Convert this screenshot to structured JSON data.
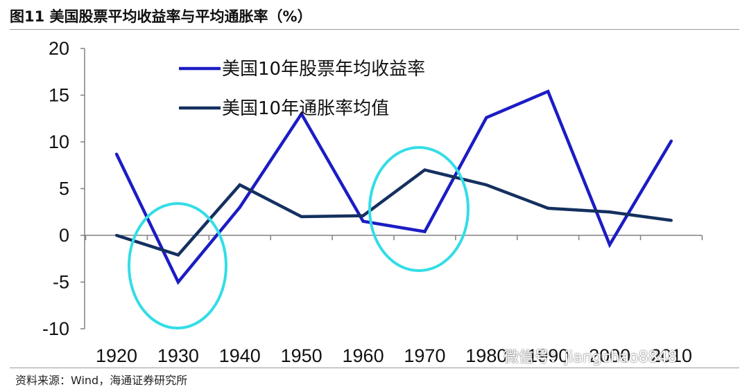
{
  "title": "图11 美国股票平均收益率与平均通胀率（%）",
  "source": "资料来源：Wind，海通证券研究所",
  "watermark": "微信号：jiangchao8848",
  "chart_data": {
    "type": "line",
    "x": [
      1920,
      1930,
      1940,
      1950,
      1960,
      1970,
      1980,
      1990,
      2000,
      2010
    ],
    "ylim": [
      -10,
      20
    ],
    "yticks": [
      -10,
      -5,
      0,
      5,
      10,
      15,
      20
    ],
    "series": [
      {
        "name": "美国10年股票年均收益率",
        "color": "#1c1cc4",
        "values": [
          8.7,
          -5.0,
          3.0,
          13.0,
          1.5,
          0.4,
          12.6,
          15.4,
          -1.0,
          10.1
        ]
      },
      {
        "name": "美国10年通胀率均值",
        "color": "#15305f",
        "values": [
          0.0,
          -2.1,
          5.4,
          2.0,
          2.1,
          7.0,
          5.4,
          2.9,
          2.5,
          1.6
        ]
      }
    ],
    "highlights": [
      {
        "x": 1930,
        "color": "#33dde6"
      },
      {
        "x": 1970,
        "color": "#33dde6"
      }
    ],
    "legend_position": "top-center"
  }
}
